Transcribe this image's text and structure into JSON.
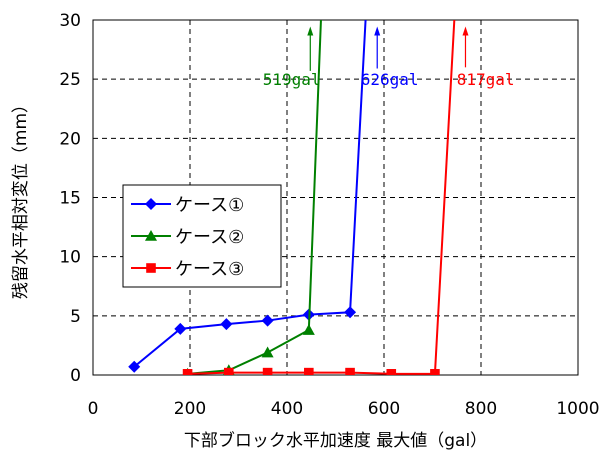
{
  "chart_data": {
    "type": "line",
    "xlabel": "下部ブロック水平加速度 最大値（gal）",
    "ylabel": "残留水平相対変位（mm）",
    "xlim": [
      0,
      1000
    ],
    "ylim": [
      0,
      30
    ],
    "xticks": [
      "0",
      "200",
      "400",
      "600",
      "800",
      "1000"
    ],
    "yticks": [
      "0",
      "5",
      "10",
      "15",
      "20",
      "25",
      "30"
    ],
    "grid": true,
    "legend_position": "left-middle",
    "series": [
      {
        "name": "ケース①",
        "color": "#0000ff",
        "marker": "diamond",
        "x": [
          85,
          180,
          275,
          360,
          445,
          530,
          562
        ],
        "y": [
          0.7,
          3.9,
          4.3,
          4.6,
          5.1,
          5.3,
          30
        ],
        "x_markers": [
          85,
          180,
          275,
          360,
          445,
          530
        ],
        "y_markers": [
          0.7,
          3.9,
          4.3,
          4.6,
          5.1,
          5.3
        ]
      },
      {
        "name": "ケース②",
        "color": "#008000",
        "marker": "triangle",
        "x": [
          195,
          280,
          360,
          445,
          470
        ],
        "y": [
          0.1,
          0.4,
          1.9,
          3.8,
          30
        ],
        "x_markers": [
          195,
          280,
          360,
          445
        ],
        "y_markers": [
          0.1,
          0.4,
          1.9,
          3.8
        ]
      },
      {
        "name": "ケース③",
        "color": "#ff0000",
        "marker": "square",
        "x": [
          195,
          280,
          360,
          445,
          530,
          615,
          705,
          745
        ],
        "y": [
          0.1,
          0.2,
          0.2,
          0.2,
          0.2,
          0.1,
          0.1,
          30
        ],
        "x_markers": [
          195,
          280,
          360,
          445,
          530,
          615,
          705
        ],
        "y_markers": [
          0.1,
          0.2,
          0.2,
          0.2,
          0.2,
          0.1,
          0.1
        ]
      }
    ],
    "annotations": [
      {
        "text": "519gal",
        "color": "#008000",
        "x": 350,
        "y": 25,
        "arrow_x": 448,
        "arrow_y_from": 29.2,
        "arrow_y_to": 25.7
      },
      {
        "text": "626gal",
        "color": "#0000ff",
        "x": 552,
        "y": 25,
        "arrow_x": 586,
        "arrow_y_from": 29.2,
        "arrow_y_to": 25.9
      },
      {
        "text": "817gal",
        "color": "#ff0000",
        "x": 750,
        "y": 25,
        "arrow_x": 768,
        "arrow_y_from": 29.2,
        "arrow_y_to": 26.0
      }
    ]
  }
}
